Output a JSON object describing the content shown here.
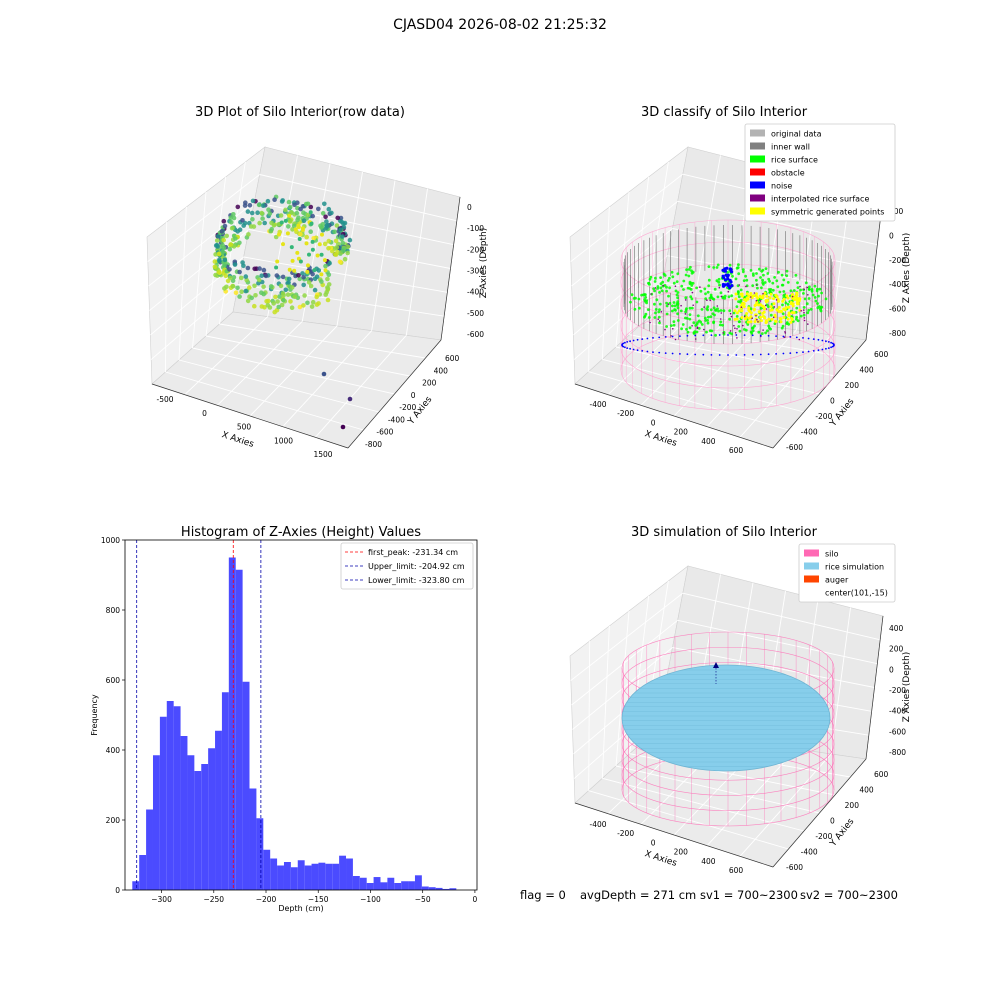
{
  "figure": {
    "suptitle": "CJASD04 2026-08-02 21:25:32",
    "status_line": {
      "flag": "flag = 0",
      "avg_depth": "avgDepth = 271 cm",
      "sv1": "sv1 = 700~2300",
      "sv2": "sv2 = 700~2300"
    }
  },
  "chart_data": [
    {
      "type": "scatter",
      "projection": "3d",
      "title": "3D Plot of Silo Interior(row data)",
      "xlabel": "X Axies",
      "ylabel": "Y Axies",
      "zlabel": "Z Axies (Depth)",
      "x_ticks": [
        "-500",
        "0",
        "500",
        "1000",
        "1500"
      ],
      "y_ticks": [
        "600",
        "400",
        "200",
        "0",
        "-200",
        "-400",
        "-600",
        "-800"
      ],
      "z_ticks": [
        "0",
        "-100",
        "-200",
        "-300",
        "-400",
        "-500",
        "-600"
      ],
      "colormap": "viridis",
      "description_points": "dense ring of rice-surface points around depth -200 to -350, three outliers near x 1000-1500",
      "colors": {
        "low": "#440154",
        "mid": "#21918c",
        "high": "#fde725"
      }
    },
    {
      "type": "scatter",
      "projection": "3d",
      "title": "3D classify of Silo Interior",
      "xlabel": "X Axies",
      "ylabel": "Y Axies",
      "zlabel": "Z Axies (Depth)",
      "x_ticks": [
        "-400",
        "-200",
        "0",
        "200",
        "400",
        "600"
      ],
      "y_ticks": [
        "600",
        "400",
        "200",
        "0",
        "-200",
        "-400",
        "-600"
      ],
      "z_ticks": [
        "200",
        "0",
        "-200",
        "-400",
        "-600",
        "-800"
      ],
      "legend": [
        {
          "label": "original data",
          "color": "#b3b3b3"
        },
        {
          "label": "inner wall",
          "color": "#808080"
        },
        {
          "label": "rice surface",
          "color": "#00ff00"
        },
        {
          "label": "obstacle",
          "color": "#ff0000"
        },
        {
          "label": "noise",
          "color": "#0000ff"
        },
        {
          "label": "interpolated rice surface",
          "color": "#800080"
        },
        {
          "label": "symmetric generated points",
          "color": "#ffff00"
        }
      ],
      "legend_position": "top-right"
    },
    {
      "type": "bar",
      "title": "Histogram of Z-Axies (Height) Values",
      "xlabel": "Depth (cm)",
      "ylabel": "Frequency",
      "xlim": [
        -335,
        2
      ],
      "ylim": [
        0,
        1000
      ],
      "x_ticks": [
        -300,
        -250,
        -200,
        -150,
        -100,
        -50,
        0
      ],
      "y_ticks": [
        0,
        200,
        400,
        600,
        800,
        1000
      ],
      "bin_width": 6.6,
      "bin_start": -328,
      "values": [
        25,
        100,
        230,
        385,
        495,
        540,
        525,
        440,
        385,
        340,
        360,
        405,
        455,
        565,
        950,
        915,
        595,
        290,
        205,
        115,
        90,
        70,
        80,
        65,
        85,
        70,
        75,
        78,
        75,
        75,
        98,
        90,
        40,
        35,
        20,
        37,
        22,
        35,
        20,
        25,
        25,
        42,
        10,
        8,
        6,
        3,
        5
      ],
      "bar_color": "#4b4bff",
      "vlines": [
        {
          "label": "first_peak: -231.34 cm",
          "value": -231.34,
          "color": "#ff0000"
        },
        {
          "label": "Upper_limit: -204.92 cm",
          "value": -204.92,
          "color": "#0000aa"
        },
        {
          "label": "Lower_limit: -323.80 cm",
          "value": -323.8,
          "color": "#0000aa"
        }
      ],
      "legend_position": "top-right"
    },
    {
      "type": "scatter",
      "projection": "3d",
      "title": "3D simulation of Silo Interior",
      "xlabel": "X Axies",
      "ylabel": "Y Axies",
      "zlabel": "Z Axies (Depth)",
      "x_ticks": [
        "-400",
        "-200",
        "0",
        "200",
        "400",
        "600"
      ],
      "y_ticks": [
        "600",
        "400",
        "200",
        "0",
        "-200",
        "-400",
        "-600"
      ],
      "z_ticks": [
        "400",
        "200",
        "0",
        "-200",
        "-400",
        "-600",
        "-800"
      ],
      "legend": [
        {
          "label": "silo",
          "color": "#ff69b4"
        },
        {
          "label": "rice simulation",
          "color": "#87ceeb"
        },
        {
          "label": "auger",
          "color": "#ff4500"
        },
        {
          "label": "center(101,-15)",
          "color": ""
        }
      ],
      "legend_position": "top-right"
    }
  ]
}
